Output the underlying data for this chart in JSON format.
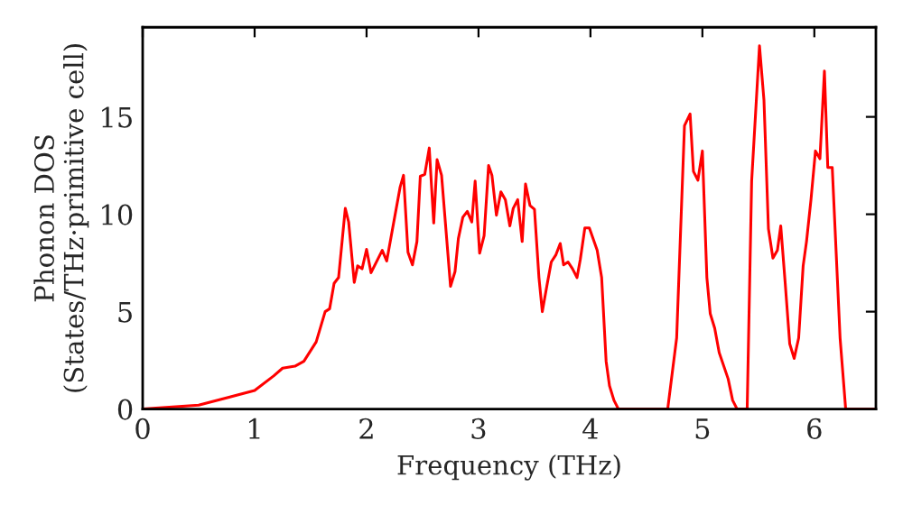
{
  "chart_data": {
    "type": "line",
    "xlabel": "Frequency (THz)",
    "ylabel": "Phonon DOS\n(States/THz·primitive cell)",
    "xlim": [
      0,
      6.55
    ],
    "ylim": [
      0,
      19.6
    ],
    "xticks": [
      0,
      1,
      2,
      3,
      4,
      5,
      6
    ],
    "yticks": [
      0,
      5,
      10,
      15
    ],
    "grid": false,
    "legend": false,
    "marker": "none",
    "line_style": "solid",
    "series": [
      {
        "color": "#ff0000",
        "x": [
          0,
          0.5,
          1.0,
          1.17,
          1.25,
          1.36,
          1.44,
          1.55,
          1.63,
          1.67,
          1.71,
          1.75,
          1.81,
          1.84,
          1.89,
          1.92,
          1.96,
          2.0,
          2.04,
          2.14,
          2.18,
          2.3,
          2.33,
          2.37,
          2.41,
          2.45,
          2.48,
          2.52,
          2.56,
          2.6,
          2.63,
          2.67,
          2.75,
          2.79,
          2.82,
          2.86,
          2.9,
          2.94,
          2.97,
          3.01,
          3.05,
          3.09,
          3.12,
          3.16,
          3.2,
          3.24,
          3.28,
          3.31,
          3.35,
          3.39,
          3.42,
          3.46,
          3.5,
          3.54,
          3.57,
          3.61,
          3.65,
          3.69,
          3.73,
          3.76,
          3.8,
          3.84,
          3.88,
          3.91,
          3.95,
          3.99,
          4.06,
          4.1,
          4.14,
          4.17,
          4.21,
          4.25,
          4.69,
          4.77,
          4.84,
          4.89,
          4.92,
          4.96,
          5.0,
          5.04,
          5.07,
          5.11,
          5.15,
          5.23,
          5.27,
          5.31,
          5.4,
          5.44,
          5.51,
          5.55,
          5.59,
          5.63,
          5.67,
          5.7,
          5.74,
          5.78,
          5.82,
          5.86,
          5.9,
          5.93,
          5.97,
          6.01,
          6.05,
          6.09,
          6.12,
          6.16,
          6.23,
          6.28,
          6.55
        ],
        "values": [
          0,
          0.2,
          0.95,
          1.7,
          2.1,
          2.2,
          2.45,
          3.45,
          5.0,
          5.15,
          6.45,
          6.75,
          10.3,
          9.6,
          6.5,
          7.35,
          7.2,
          8.2,
          7.0,
          8.15,
          7.6,
          11.4,
          12.0,
          8.05,
          7.4,
          8.6,
          11.95,
          12.05,
          13.4,
          9.55,
          12.8,
          12.0,
          6.3,
          7.05,
          8.75,
          9.85,
          10.15,
          9.6,
          11.7,
          8.0,
          8.9,
          12.5,
          12.0,
          9.95,
          11.15,
          10.75,
          9.4,
          10.3,
          10.75,
          8.6,
          11.55,
          10.45,
          10.25,
          6.75,
          5.0,
          6.3,
          7.55,
          7.9,
          8.5,
          7.4,
          7.55,
          7.2,
          6.75,
          7.7,
          9.3,
          9.3,
          8.15,
          6.75,
          2.45,
          1.2,
          0.45,
          0,
          0,
          3.65,
          14.55,
          15.15,
          12.2,
          11.75,
          13.25,
          6.75,
          4.9,
          4.15,
          2.9,
          1.55,
          0.45,
          0,
          0,
          11.7,
          18.65,
          15.85,
          9.25,
          7.75,
          8.15,
          9.4,
          6.45,
          3.35,
          2.6,
          3.65,
          7.35,
          8.6,
          10.75,
          13.25,
          12.85,
          17.35,
          12.4,
          12.4,
          3.65,
          0,
          0
        ]
      }
    ]
  }
}
